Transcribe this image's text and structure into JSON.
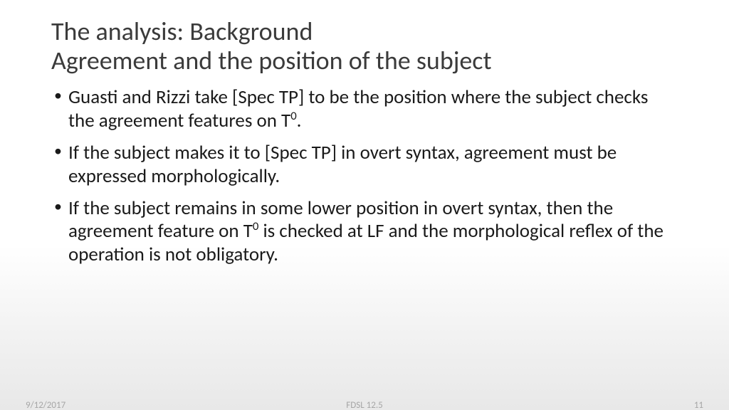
{
  "title": {
    "line1": "The analysis: Background",
    "line2": "Agreement and the position of the subject"
  },
  "bullets": [
    {
      "pre": "Guasti and Rizzi take [Spec TP] to be the position where the subject checks the agreement features on T",
      "sup": "0",
      "post": "."
    },
    {
      "pre": "If the subject makes it to [Spec TP] in overt syntax, agreement must be expressed morphologically.",
      "sup": "",
      "post": ""
    },
    {
      "pre": "If the subject remains in some lower position in overt syntax, then the agreement feature on T",
      "sup": "0",
      "post": " is checked at LF and the morphological reflex of the operation is not obligatory."
    }
  ],
  "footer": {
    "date": "9/12/2017",
    "center": "FDSL 12.5",
    "page": "11"
  },
  "colors": {
    "title": "#3b3b3b",
    "body": "#1a1a1a",
    "footer": "#a6a6a6",
    "bg_top": "#ffffff",
    "bg_bottom": "#e8e8e8"
  },
  "typography": {
    "title_fontsize": 36,
    "bullet_fontsize": 27,
    "footer_fontsize": 13,
    "font_family": "Calibri"
  }
}
